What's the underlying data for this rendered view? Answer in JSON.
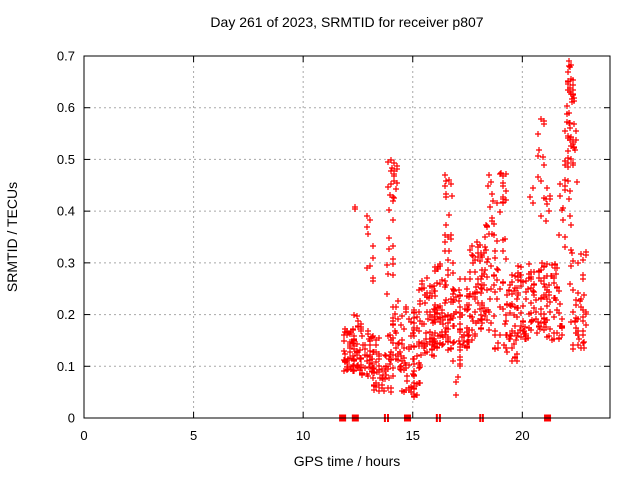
{
  "chart_data": {
    "type": "scatter",
    "title": "Day 261 of 2023, SRMTID for receiver p807",
    "xlabel": "GPS time / hours",
    "ylabel": "SRMTID / TECUs",
    "xlim": [
      0,
      24
    ],
    "ylim": [
      0,
      0.7
    ],
    "xticks": [
      0,
      5,
      10,
      15,
      20
    ],
    "yticks": [
      0,
      0.1,
      0.2,
      0.3,
      0.4,
      0.5,
      0.6,
      0.7
    ],
    "grid": true,
    "grid_color": "#a8a8a8",
    "marker": "plus",
    "marker_color": "#ff0000",
    "data_time_range_hours": [
      11.8,
      22.9
    ],
    "max_value_tecus": 0.69,
    "max_value_hour": 22.15,
    "clusters": [
      {
        "x0": 11.88,
        "x1": 12.28,
        "y0": 0.09,
        "y1": 0.18,
        "n": 40,
        "bias": 1.4
      },
      {
        "x0": 12.32,
        "x1": 12.62,
        "y0": 0.09,
        "y1": 0.2,
        "n": 40,
        "bias": 1.4
      },
      {
        "x0": 12.3,
        "x1": 12.5,
        "y0": 0.4,
        "y1": 0.425,
        "n": 2,
        "bias": 1
      },
      {
        "x0": 12.7,
        "x1": 13.15,
        "y0": 0.08,
        "y1": 0.17,
        "n": 35,
        "bias": 1.3
      },
      {
        "x0": 12.92,
        "x1": 13.18,
        "y0": 0.25,
        "y1": 0.42,
        "n": 10,
        "bias": 1
      },
      {
        "x0": 13.2,
        "x1": 13.6,
        "y0": 0.05,
        "y1": 0.16,
        "n": 35,
        "bias": 1.3
      },
      {
        "x0": 13.65,
        "x1": 14.0,
        "y0": 0.05,
        "y1": 0.13,
        "n": 20,
        "bias": 1.2
      },
      {
        "x0": 13.88,
        "x1": 14.28,
        "y0": 0.44,
        "y1": 0.51,
        "n": 16,
        "bias": 1
      },
      {
        "x0": 13.92,
        "x1": 14.1,
        "y0": 0.3,
        "y1": 0.44,
        "n": 10,
        "bias": 1
      },
      {
        "x0": 13.85,
        "x1": 14.22,
        "y0": 0.12,
        "y1": 0.3,
        "n": 16,
        "bias": 1.2
      },
      {
        "x0": 14.1,
        "x1": 14.45,
        "y0": 0.08,
        "y1": 0.25,
        "n": 25,
        "bias": 1.5
      },
      {
        "x0": 14.5,
        "x1": 15.05,
        "y0": 0.05,
        "y1": 0.22,
        "n": 45,
        "bias": 1.4
      },
      {
        "x0": 15.05,
        "x1": 15.3,
        "y0": 0.04,
        "y1": 0.2,
        "n": 22,
        "bias": 1.3
      },
      {
        "x0": 15.3,
        "x1": 16.0,
        "y0": 0.12,
        "y1": 0.27,
        "n": 70,
        "bias": 1.2
      },
      {
        "x0": 16.0,
        "x1": 16.85,
        "y0": 0.13,
        "y1": 0.3,
        "n": 80,
        "bias": 1.2
      },
      {
        "x0": 16.5,
        "x1": 16.75,
        "y0": 0.3,
        "y1": 0.47,
        "n": 18,
        "bias": 1
      },
      {
        "x0": 16.85,
        "x1": 17.15,
        "y0": 0.1,
        "y1": 0.25,
        "n": 25,
        "bias": 1.3
      },
      {
        "x0": 16.95,
        "x1": 17.1,
        "y0": 0.04,
        "y1": 0.08,
        "n": 3,
        "bias": 1
      },
      {
        "x0": 17.15,
        "x1": 17.6,
        "y0": 0.13,
        "y1": 0.27,
        "n": 35,
        "bias": 1.2
      },
      {
        "x0": 17.6,
        "x1": 18.1,
        "y0": 0.15,
        "y1": 0.35,
        "n": 45,
        "bias": 1.3
      },
      {
        "x0": 18.15,
        "x1": 18.7,
        "y0": 0.17,
        "y1": 0.38,
        "n": 50,
        "bias": 1.2
      },
      {
        "x0": 18.45,
        "x1": 18.65,
        "y0": 0.38,
        "y1": 0.49,
        "n": 8,
        "bias": 1
      },
      {
        "x0": 18.75,
        "x1": 19.25,
        "y0": 0.13,
        "y1": 0.48,
        "n": 45,
        "bias": 1.3
      },
      {
        "x0": 19.3,
        "x1": 19.75,
        "y0": 0.11,
        "y1": 0.28,
        "n": 40,
        "bias": 1.2
      },
      {
        "x0": 19.8,
        "x1": 20.4,
        "y0": 0.15,
        "y1": 0.3,
        "n": 48,
        "bias": 1.2
      },
      {
        "x0": 20.4,
        "x1": 21.0,
        "y0": 0.16,
        "y1": 0.3,
        "n": 40,
        "bias": 1.2
      },
      {
        "x0": 20.35,
        "x1": 21.25,
        "y0": 0.37,
        "y1": 0.48,
        "n": 14,
        "bias": 1
      },
      {
        "x0": 20.7,
        "x1": 21.05,
        "y0": 0.49,
        "y1": 0.58,
        "n": 8,
        "bias": 1
      },
      {
        "x0": 21.0,
        "x1": 21.8,
        "y0": 0.15,
        "y1": 0.3,
        "n": 60,
        "bias": 1.2
      },
      {
        "x0": 21.7,
        "x1": 21.95,
        "y0": 0.31,
        "y1": 0.47,
        "n": 10,
        "bias": 1
      },
      {
        "x0": 21.95,
        "x1": 22.45,
        "y0": 0.45,
        "y1": 0.56,
        "n": 26,
        "bias": 1
      },
      {
        "x0": 22.05,
        "x1": 22.35,
        "y0": 0.56,
        "y1": 0.62,
        "n": 12,
        "bias": 1
      },
      {
        "x0": 22.08,
        "x1": 22.3,
        "y0": 0.62,
        "y1": 0.67,
        "n": 14,
        "bias": 1
      },
      {
        "x0": 22.1,
        "x1": 22.25,
        "y0": 0.67,
        "y1": 0.695,
        "n": 5,
        "bias": 1
      },
      {
        "x0": 22.05,
        "x1": 22.3,
        "y0": 0.3,
        "y1": 0.45,
        "n": 6,
        "bias": 1
      },
      {
        "x0": 22.2,
        "x1": 22.9,
        "y0": 0.13,
        "y1": 0.33,
        "n": 45,
        "bias": 1.4
      }
    ],
    "zero_markers": [
      {
        "hour": 11.8,
        "type": "square"
      },
      {
        "hour": 12.38,
        "type": "square"
      },
      {
        "hour": 13.73,
        "type": "tick"
      },
      {
        "hour": 13.87,
        "type": "tick"
      },
      {
        "hour": 14.76,
        "type": "square"
      },
      {
        "hour": 16.1,
        "type": "tick"
      },
      {
        "hour": 16.24,
        "type": "tick"
      },
      {
        "hour": 18.08,
        "type": "tick"
      },
      {
        "hour": 18.2,
        "type": "tick"
      },
      {
        "hour": 21.15,
        "type": "square"
      }
    ]
  }
}
